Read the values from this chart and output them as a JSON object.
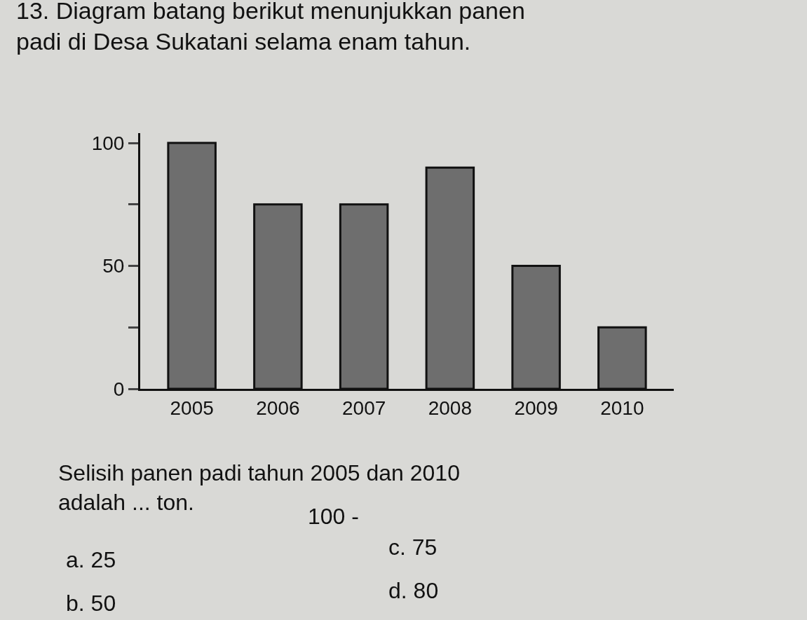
{
  "chart_data": {
    "type": "bar",
    "title": "13. Diagram batang berikut menunjukkan panen padi di Desa Sukatani selama enam tahun.",
    "categories": [
      "2005",
      "2006",
      "2007",
      "2008",
      "2009",
      "2010"
    ],
    "values": [
      100,
      75,
      75,
      90,
      50,
      25
    ],
    "color": "#6e6e6e",
    "ylim": [
      0,
      104
    ],
    "yticks": [
      0,
      {
        "value": 25,
        "label": null
      },
      50,
      {
        "value": 75,
        "label": null
      },
      100
    ],
    "grid": false,
    "legend": false,
    "annotations": [
      "Selisih panen padi tahun 2005 dan 2010 adalah ... ton.",
      "100 -",
      "a. 25",
      "b. 50",
      "c. 75",
      "d. 80"
    ]
  }
}
